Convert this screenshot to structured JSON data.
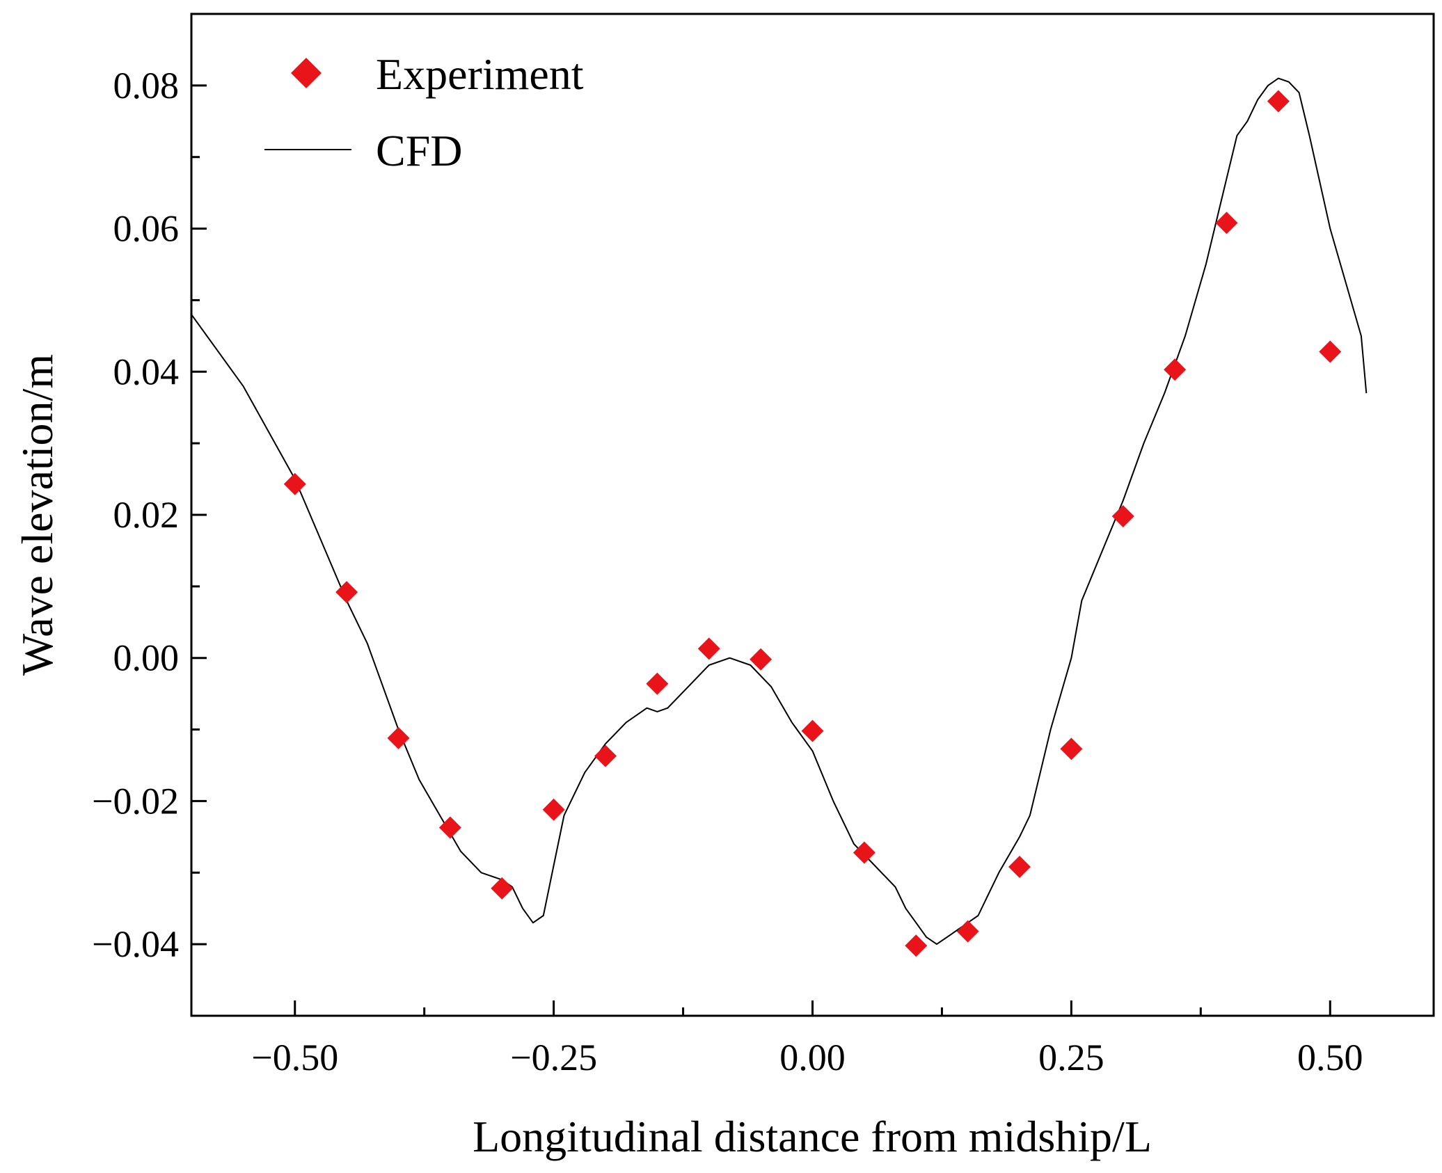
{
  "chart_data": {
    "type": "scatter+line",
    "title": "",
    "xlabel": "Longitudinal distance from midship/L",
    "ylabel": "Wave elevation/m",
    "xlim": [
      -0.6,
      0.6
    ],
    "ylim": [
      -0.05,
      0.09
    ],
    "x_ticks": [
      -0.5,
      -0.25,
      0.0,
      0.25,
      0.5
    ],
    "x_tick_labels": [
      "−0.50",
      "−0.25",
      "0.00",
      "0.25",
      "0.50"
    ],
    "y_ticks": [
      -0.04,
      -0.02,
      0.0,
      0.02,
      0.04,
      0.06,
      0.08
    ],
    "y_tick_labels": [
      "−0.04",
      "−0.02",
      "0.00",
      "0.02",
      "0.04",
      "0.06",
      "0.08"
    ],
    "legend_position": "top-left",
    "grid": false,
    "series": [
      {
        "name": "Experiment",
        "kind": "scatter",
        "marker": "diamond",
        "color": "#e8141a",
        "x": [
          -0.5,
          -0.45,
          -0.4,
          -0.35,
          -0.3,
          -0.25,
          -0.2,
          -0.15,
          -0.1,
          -0.05,
          0.0,
          0.05,
          0.1,
          0.15,
          0.2,
          0.25,
          0.3,
          0.35,
          0.4,
          0.45,
          0.5
        ],
        "y": [
          0.0243,
          0.0092,
          -0.0112,
          -0.0237,
          -0.0322,
          -0.0212,
          -0.0137,
          -0.0036,
          0.0013,
          -0.0002,
          -0.0102,
          -0.0272,
          -0.0402,
          -0.0382,
          -0.0292,
          -0.0127,
          0.0198,
          0.0403,
          0.0608,
          0.0778,
          0.0428
        ]
      },
      {
        "name": "CFD",
        "kind": "line",
        "color": "#000000",
        "x": [
          -0.6,
          -0.55,
          -0.5,
          -0.45,
          -0.43,
          -0.42,
          -0.4,
          -0.38,
          -0.36,
          -0.34,
          -0.32,
          -0.3,
          -0.29,
          -0.28,
          -0.27,
          -0.26,
          -0.25,
          -0.24,
          -0.22,
          -0.2,
          -0.18,
          -0.16,
          -0.15,
          -0.14,
          -0.12,
          -0.1,
          -0.08,
          -0.06,
          -0.04,
          -0.02,
          0.0,
          0.02,
          0.04,
          0.06,
          0.08,
          0.09,
          0.1,
          0.11,
          0.12,
          0.13,
          0.14,
          0.15,
          0.16,
          0.17,
          0.18,
          0.2,
          0.21,
          0.22,
          0.23,
          0.24,
          0.25,
          0.26,
          0.28,
          0.3,
          0.32,
          0.34,
          0.36,
          0.38,
          0.4,
          0.41,
          0.42,
          0.43,
          0.44,
          0.45,
          0.46,
          0.47,
          0.48,
          0.5,
          0.52,
          0.53,
          0.535
        ],
        "y": [
          0.048,
          0.038,
          0.025,
          0.008,
          0.002,
          -0.002,
          -0.01,
          -0.017,
          -0.022,
          -0.027,
          -0.03,
          -0.031,
          -0.032,
          -0.035,
          -0.037,
          -0.036,
          -0.029,
          -0.022,
          -0.016,
          -0.012,
          -0.009,
          -0.007,
          -0.0075,
          -0.007,
          -0.004,
          -0.001,
          0.0,
          -0.001,
          -0.004,
          -0.009,
          -0.013,
          -0.02,
          -0.026,
          -0.029,
          -0.032,
          -0.035,
          -0.037,
          -0.039,
          -0.04,
          -0.039,
          -0.038,
          -0.037,
          -0.036,
          -0.033,
          -0.03,
          -0.025,
          -0.022,
          -0.016,
          -0.01,
          -0.005,
          0.0,
          0.008,
          0.015,
          0.022,
          0.03,
          0.037,
          0.045,
          0.055,
          0.067,
          0.073,
          0.075,
          0.078,
          0.08,
          0.081,
          0.0805,
          0.079,
          0.073,
          0.06,
          0.05,
          0.045,
          0.037
        ]
      }
    ]
  }
}
